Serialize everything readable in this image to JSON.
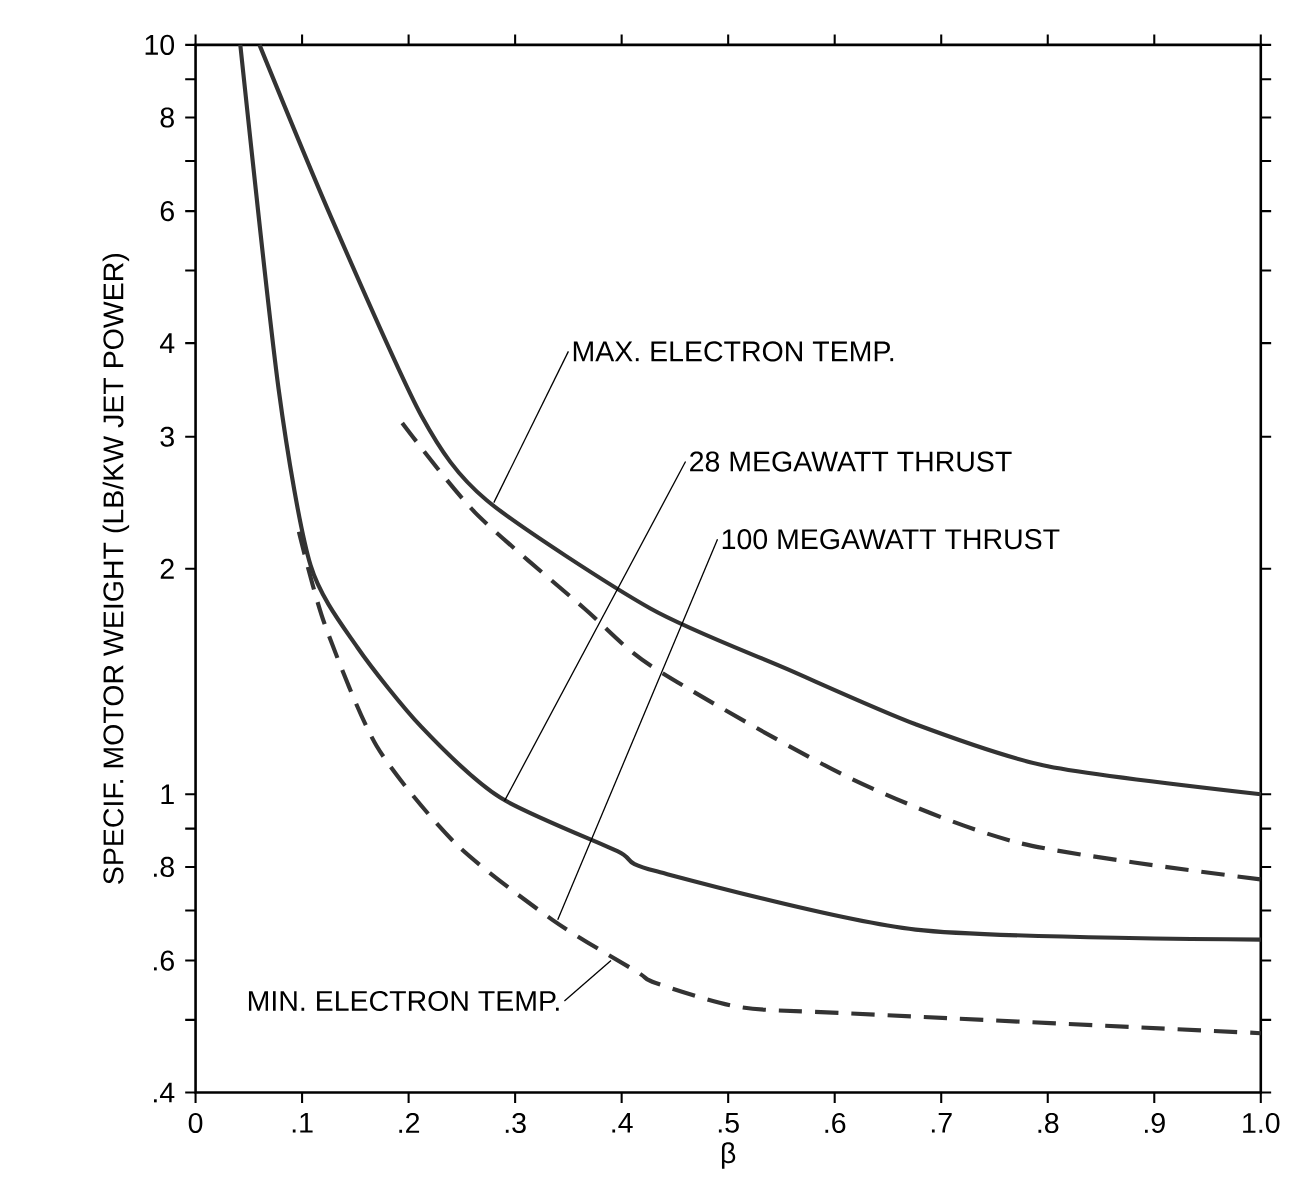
{
  "chart_data": {
    "type": "line",
    "xlabel": "β",
    "ylabel": "SPECIF. MOTOR WEIGHT (LB/KW JET POWER)",
    "log": "y",
    "xlim": [
      0,
      1.0
    ],
    "ylim": [
      0.4,
      10
    ],
    "xticks": [
      0,
      {
        "value": 0.1,
        "label": ".1"
      },
      {
        "value": 0.2,
        "label": ".2"
      },
      {
        "value": 0.3,
        "label": ".3"
      },
      {
        "value": 0.4,
        "label": ".4"
      },
      {
        "value": 0.5,
        "label": ".5"
      },
      {
        "value": 0.6,
        "label": ".6"
      },
      {
        "value": 0.7,
        "label": ".7"
      },
      {
        "value": 0.8,
        "label": ".8"
      },
      {
        "value": 0.9,
        "label": ".9"
      },
      {
        "value": 1.0,
        "label": "1.0"
      }
    ],
    "yticks": [
      {
        "value": 0.4,
        "label": ".4"
      },
      {
        "value": 0.5,
        "label": null
      },
      {
        "value": 0.6,
        "label": ".6"
      },
      {
        "value": 0.7,
        "label": null
      },
      {
        "value": 0.8,
        "label": ".8"
      },
      {
        "value": 0.9,
        "label": null
      },
      1,
      2,
      3,
      4,
      {
        "value": 5,
        "label": null
      },
      6,
      {
        "value": 7,
        "label": null
      },
      8,
      {
        "value": 9,
        "label": null
      },
      10
    ],
    "series": [
      {
        "color": "#333333",
        "line_style": "solid",
        "x": [
          0.06,
          0.127,
          0.212,
          0.273,
          0.427,
          0.555,
          0.676,
          0.8,
          1.0
        ],
        "values": [
          10,
          5.9,
          3.2,
          2.47,
          1.77,
          1.47,
          1.24,
          1.09,
          1.0
        ]
      },
      {
        "color": "#333333",
        "line_style": "dashed",
        "x": [
          0.194,
          0.262,
          0.365,
          0.432,
          0.615,
          0.775,
          1.0
        ],
        "values": [
          3.13,
          2.38,
          1.77,
          1.47,
          1.05,
          0.86,
          0.77
        ]
      },
      {
        "color": "#333333",
        "line_style": "solid",
        "x": [
          0.042,
          0.078,
          0.108,
          0.152,
          0.212,
          0.286,
          0.396,
          0.432,
          0.676,
          1.0
        ],
        "values": [
          10,
          3.47,
          2.02,
          1.57,
          1.23,
          0.99,
          0.84,
          0.79,
          0.66,
          0.64
        ]
      },
      {
        "color": "#333333",
        "line_style": "dashed",
        "x": [
          0.097,
          0.121,
          0.17,
          0.244,
          0.335,
          0.414,
          0.432,
          0.511,
          0.615,
          1.0
        ],
        "values": [
          2.24,
          1.69,
          1.16,
          0.86,
          0.68,
          0.58,
          0.56,
          0.52,
          0.51,
          0.48
        ]
      }
    ],
    "annotations": [
      {
        "text": "MAX. ELECTRON TEMP.",
        "x": 0.28,
        "y": 2.45
      },
      {
        "text": "28 MEGAWATT THRUST",
        "x": 0.29,
        "y": 0.98
      },
      {
        "text": "100 MEGAWATT THRUST",
        "x": 0.34,
        "y": 0.68
      },
      {
        "text": "MIN. ELECTRON TEMP.",
        "x": 0.39,
        "y": 0.6
      }
    ]
  }
}
